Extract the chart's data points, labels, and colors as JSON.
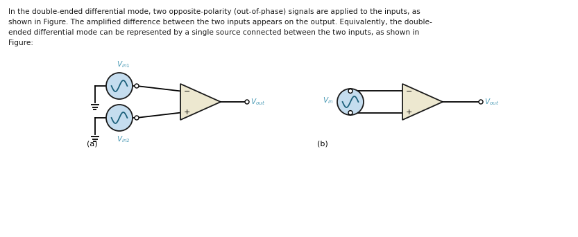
{
  "bg_color": "#ffffff",
  "text_color": "#1a1a1a",
  "line_color": "#000000",
  "source_fill": "#c5ddef",
  "source_border": "#1a1a1a",
  "amp_fill": "#ede8d0",
  "amp_border": "#1a1a1a",
  "label_color": "#4a9ab5",
  "label_Vin1": "$V_{in1}$",
  "label_Vin2": "$V_{in2}$",
  "label_Vin": "$V_{in}$",
  "label_Vout": "$V_{out}$",
  "label_a": "(a)",
  "label_b": "(b)",
  "label_minus": "−",
  "label_plus": "+",
  "line1": "In the double-ended differential mode, two opposite-polarity (out-of-phase) signals are applied to the inputs, as",
  "line2": "shown in Figure. The amplified difference between the two inputs appears on the output. Equivalently, the double-",
  "line3": "ended differential mode can be represented by a single source connected between the two inputs, as shown in",
  "line4": "Figure:"
}
